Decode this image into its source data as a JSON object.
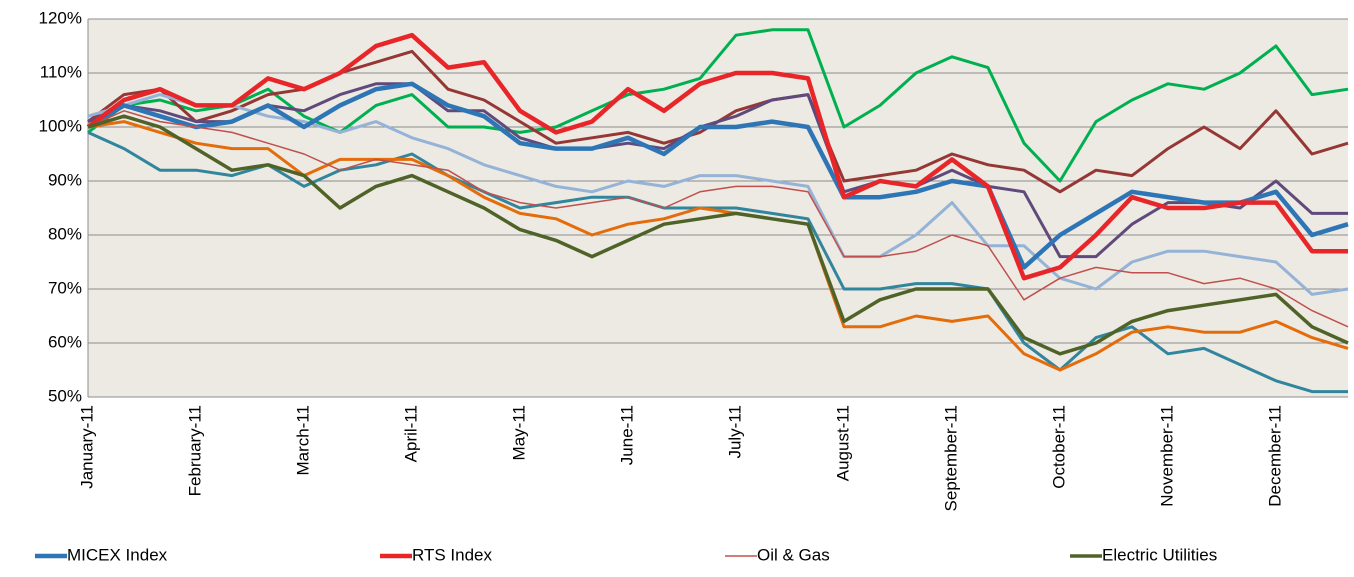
{
  "chart_data": {
    "type": "line",
    "categories": [
      "January-11",
      null,
      null,
      "February-11",
      null,
      null,
      "March-11",
      null,
      null,
      "April-11",
      null,
      null,
      "May-11",
      null,
      null,
      "June-11",
      null,
      null,
      "July-11",
      null,
      null,
      "August-11",
      null,
      null,
      "September-11",
      null,
      null,
      "October-11",
      null,
      null,
      "November-11",
      null,
      null,
      "December-11",
      null,
      null
    ],
    "ylim": [
      50,
      120
    ],
    "yticks": [
      {
        "value": 50,
        "label": "50%"
      },
      {
        "value": 60,
        "label": "60%"
      },
      {
        "value": 70,
        "label": "70%"
      },
      {
        "value": 80,
        "label": "80%"
      },
      {
        "value": 90,
        "label": "90%"
      },
      {
        "value": 100,
        "label": "100%"
      },
      {
        "value": 110,
        "label": "110%"
      },
      {
        "value": 120,
        "label": "120%"
      }
    ],
    "grid": true,
    "legend": "bottom",
    "series": [
      {
        "color": "#00b050",
        "values": [
          99,
          104,
          105,
          103,
          104,
          107,
          102,
          99,
          104,
          106,
          100,
          100,
          99,
          100,
          103,
          106,
          107,
          109,
          117,
          118,
          118,
          100,
          104,
          110,
          113,
          111,
          97,
          90,
          101,
          105,
          108,
          107,
          110,
          115,
          106,
          107
        ]
      },
      {
        "color": "#953735",
        "values": [
          101,
          106,
          107,
          101,
          103,
          106,
          107,
          110,
          112,
          114,
          107,
          105,
          101,
          97,
          98,
          99,
          97,
          99,
          103,
          105,
          106,
          90,
          91,
          92,
          95,
          93,
          92,
          88,
          92,
          91,
          96,
          100,
          96,
          103,
          95,
          97
        ]
      },
      {
        "color": "#604a7b",
        "values": [
          101,
          104,
          103,
          101,
          101,
          104,
          103,
          106,
          108,
          108,
          103,
          103,
          98,
          96,
          96,
          97,
          96,
          100,
          102,
          105,
          106,
          88,
          90,
          89,
          92,
          89,
          88,
          76,
          76,
          82,
          86,
          86,
          85,
          90,
          84,
          84
        ]
      },
      {
        "color": "#95b3d7",
        "values": [
          102,
          104,
          106,
          104,
          104,
          102,
          101,
          99,
          101,
          98,
          96,
          93,
          91,
          89,
          88,
          90,
          89,
          91,
          91,
          90,
          89,
          76,
          76,
          80,
          86,
          78,
          78,
          72,
          70,
          75,
          77,
          77,
          76,
          75,
          69,
          70
        ]
      },
      {
        "color": "#31859c",
        "values": [
          99,
          96,
          92,
          92,
          91,
          93,
          89,
          92,
          93,
          95,
          91,
          88,
          85,
          86,
          87,
          87,
          85,
          85,
          85,
          84,
          83,
          70,
          70,
          71,
          71,
          70,
          60,
          55,
          61,
          63,
          58,
          59,
          56,
          53,
          51,
          51
        ]
      },
      {
        "color": "#e46c0a",
        "values": [
          100,
          101,
          99,
          97,
          96,
          96,
          91,
          94,
          94,
          94,
          91,
          87,
          84,
          83,
          80,
          82,
          83,
          85,
          84,
          83,
          82,
          63,
          63,
          65,
          64,
          65,
          58,
          55,
          58,
          62,
          63,
          62,
          62,
          64,
          61,
          59
        ]
      },
      {
        "name": "MICEX Index",
        "color": "#2e75b6",
        "values": [
          100,
          104,
          102,
          100,
          101,
          104,
          100,
          104,
          107,
          108,
          104,
          102,
          97,
          96,
          96,
          98,
          95,
          100,
          100,
          101,
          100,
          87,
          87,
          88,
          90,
          89,
          74,
          80,
          84,
          88,
          87,
          86,
          86,
          88,
          80,
          82
        ]
      },
      {
        "name": "RTS Index",
        "color": "#e8262a",
        "values": [
          100,
          105,
          107,
          104,
          104,
          109,
          107,
          110,
          115,
          117,
          111,
          112,
          103,
          99,
          101,
          107,
          103,
          108,
          110,
          110,
          109,
          87,
          90,
          89,
          94,
          89,
          72,
          74,
          80,
          87,
          85,
          85,
          86,
          86,
          77,
          77
        ]
      },
      {
        "name": "Oil & Gas",
        "color": "#c0504d",
        "values": [
          100,
          103,
          101,
          100,
          99,
          97,
          95,
          92,
          94,
          93,
          92,
          88,
          86,
          85,
          86,
          87,
          85,
          88,
          89,
          89,
          88,
          76,
          76,
          77,
          80,
          78,
          68,
          72,
          74,
          73,
          73,
          71,
          72,
          70,
          66,
          63
        ]
      },
      {
        "name": "Electric Utilities",
        "color": "#4f6228",
        "values": [
          100,
          102,
          100,
          96,
          92,
          93,
          91,
          85,
          89,
          91,
          88,
          85,
          81,
          79,
          76,
          79,
          82,
          83,
          84,
          83,
          82,
          64,
          68,
          70,
          70,
          70,
          61,
          58,
          60,
          64,
          66,
          67,
          68,
          69,
          63,
          60
        ]
      }
    ]
  }
}
